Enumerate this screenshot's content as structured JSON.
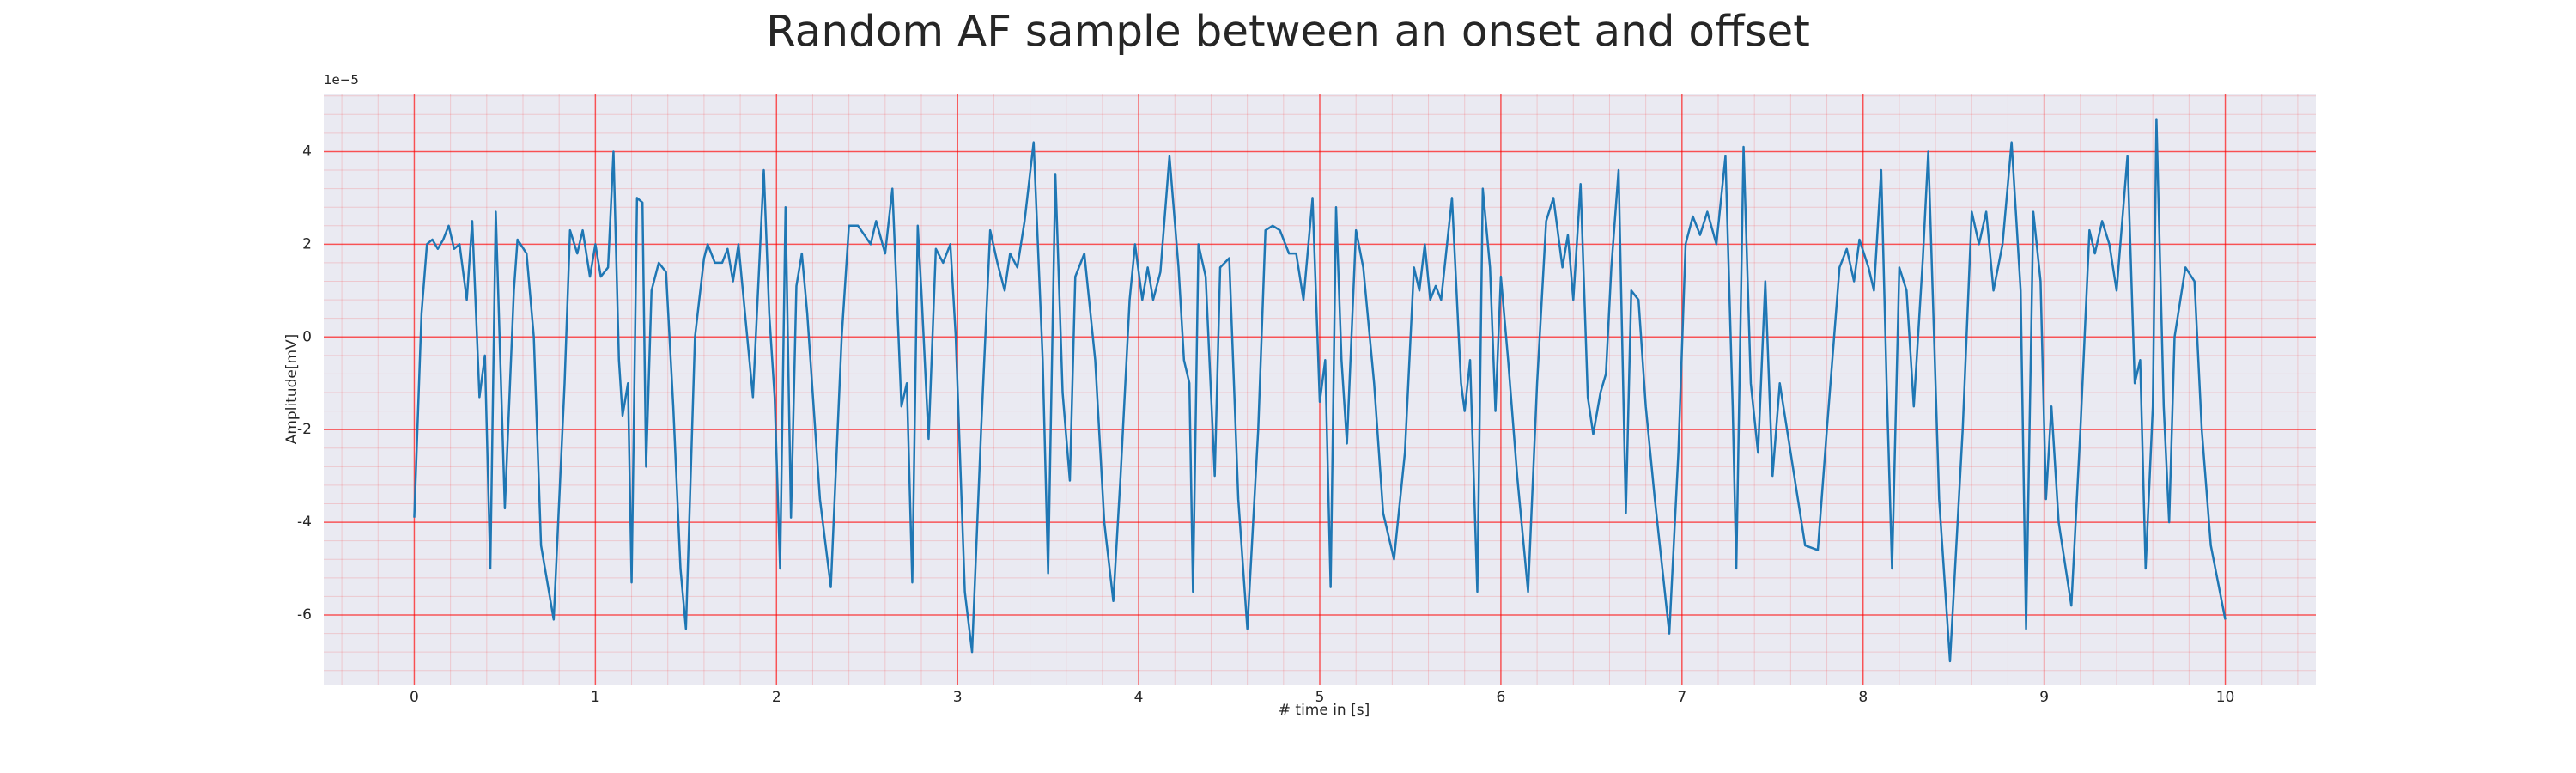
{
  "chart_data": {
    "type": "line",
    "title": "Random AF sample between an onset and offset",
    "xlabel": "# time in [s]",
    "ylabel": "Amplitude[mV]",
    "y_offset_label": "1e−5",
    "xlim": [
      -0.5,
      10.5
    ],
    "ylim": [
      -7.52,
      5.25
    ],
    "xticks": [
      0,
      1,
      2,
      3,
      4,
      5,
      6,
      7,
      8,
      9,
      10
    ],
    "yticks": [
      -6,
      -4,
      -2,
      0,
      2,
      4
    ],
    "grid": true,
    "minor_grid": true,
    "background": "#eaeaf2",
    "grid_color": "#ff0000",
    "x": [
      0,
      0.04,
      0.07,
      0.1,
      0.13,
      0.16,
      0.19,
      0.22,
      0.25,
      0.29,
      0.32,
      0.36,
      0.39,
      0.42,
      0.45,
      0.5,
      0.55,
      0.57,
      0.62,
      0.66,
      0.7,
      0.77,
      0.83,
      0.86,
      0.9,
      0.93,
      0.97,
      1.0,
      1.03,
      1.07,
      1.1,
      1.13,
      1.15,
      1.18,
      1.2,
      1.23,
      1.26,
      1.28,
      1.31,
      1.35,
      1.39,
      1.43,
      1.47,
      1.5,
      1.55,
      1.6,
      1.62,
      1.66,
      1.7,
      1.73,
      1.76,
      1.79,
      1.87,
      1.93,
      1.96,
      1.99,
      2.02,
      2.05,
      2.08,
      2.11,
      2.14,
      2.17,
      2.24,
      2.3,
      2.36,
      2.4,
      2.45,
      2.52,
      2.55,
      2.6,
      2.64,
      2.69,
      2.72,
      2.75,
      2.78,
      2.8,
      2.84,
      2.88,
      2.92,
      2.96,
      2.99,
      3.04,
      3.08,
      3.13,
      3.18,
      3.22,
      3.26,
      3.29,
      3.33,
      3.37,
      3.42,
      3.47,
      3.5,
      3.54,
      3.58,
      3.62,
      3.65,
      3.7,
      3.76,
      3.81,
      3.86,
      3.9,
      3.95,
      3.98,
      4.02,
      4.05,
      4.08,
      4.12,
      4.17,
      4.22,
      4.25,
      4.28,
      4.3,
      4.33,
      4.37,
      4.42,
      4.45,
      4.5,
      4.55,
      4.6,
      4.66,
      4.7,
      4.74,
      4.78,
      4.83,
      4.87,
      4.91,
      4.96,
      5.0,
      5.03,
      5.06,
      5.09,
      5.12,
      5.15,
      5.2,
      5.24,
      5.3,
      5.35,
      5.41,
      5.47,
      5.52,
      5.55,
      5.58,
      5.61,
      5.64,
      5.67,
      5.73,
      5.78,
      5.8,
      5.83,
      5.87,
      5.9,
      5.94,
      5.97,
      6.0,
      6.04,
      6.09,
      6.15,
      6.2,
      6.25,
      6.29,
      6.34,
      6.37,
      6.4,
      6.44,
      6.48,
      6.51,
      6.55,
      6.58,
      6.61,
      6.65,
      6.69,
      6.72,
      6.76,
      6.8,
      6.85,
      6.93,
      6.98,
      7.02,
      7.06,
      7.1,
      7.14,
      7.19,
      7.24,
      7.28,
      7.3,
      7.34,
      7.38,
      7.42,
      7.46,
      7.5,
      7.54,
      7.6,
      7.68,
      7.75,
      7.8,
      7.87,
      7.91,
      7.95,
      7.98,
      8.03,
      8.06,
      8.1,
      8.13,
      8.16,
      8.2,
      8.24,
      8.28,
      8.33,
      8.36,
      8.42,
      8.48,
      8.55,
      8.6,
      8.64,
      8.68,
      8.72,
      8.77,
      8.82,
      8.87,
      8.9,
      8.94,
      8.98,
      9.01,
      9.04,
      9.08,
      9.15,
      9.2,
      9.25,
      9.28,
      9.32,
      9.36,
      9.4,
      9.46,
      9.5,
      9.53,
      9.56,
      9.6,
      9.62,
      9.66,
      9.69,
      9.72,
      9.78,
      9.83,
      9.87,
      9.92,
      10.0
    ],
    "series": [
      {
        "color": "#1f77b4",
        "values": [
          -3.9,
          0.5,
          2.0,
          2.1,
          1.9,
          2.1,
          2.4,
          1.9,
          2.0,
          0.8,
          2.5,
          -1.3,
          -0.4,
          -5.0,
          2.7,
          -3.7,
          1.0,
          2.1,
          1.8,
          0.0,
          -4.5,
          -6.1,
          -1.0,
          2.3,
          1.8,
          2.3,
          1.3,
          2.0,
          1.3,
          1.5,
          4.0,
          -0.5,
          -1.7,
          -1.0,
          -5.3,
          3.0,
          2.9,
          -2.8,
          1.0,
          1.6,
          1.4,
          -1.5,
          -5.0,
          -6.3,
          0.0,
          1.7,
          2.0,
          1.6,
          1.6,
          1.9,
          1.2,
          2.0,
          -1.3,
          3.6,
          0.5,
          -1.3,
          -5.0,
          2.8,
          -3.9,
          1.1,
          1.8,
          0.5,
          -3.5,
          -5.4,
          0.0,
          2.4,
          2.4,
          2.0,
          2.5,
          1.8,
          3.2,
          -1.5,
          -1.0,
          -5.3,
          2.4,
          1.0,
          -2.2,
          1.9,
          1.6,
          2.0,
          0.0,
          -5.5,
          -6.8,
          -2.0,
          2.3,
          1.6,
          1.0,
          1.8,
          1.5,
          2.5,
          4.2,
          -0.5,
          -5.1,
          3.5,
          -1.2,
          -3.1,
          1.3,
          1.8,
          -0.5,
          -4.0,
          -5.7,
          -3.0,
          0.8,
          2.0,
          0.8,
          1.5,
          0.8,
          1.4,
          3.9,
          1.5,
          -0.5,
          -1.0,
          -5.5,
          2.0,
          1.3,
          -3.0,
          1.5,
          1.7,
          -3.5,
          -6.3,
          -2.0,
          2.3,
          2.4,
          2.3,
          1.8,
          1.8,
          0.8,
          3.0,
          -1.4,
          -0.5,
          -5.4,
          2.8,
          -0.5,
          -2.3,
          2.3,
          1.5,
          -1.0,
          -3.8,
          -4.8,
          -2.5,
          1.5,
          1.0,
          2.0,
          0.8,
          1.1,
          0.8,
          3.0,
          -1.0,
          -1.6,
          -0.5,
          -5.5,
          3.2,
          1.5,
          -1.6,
          1.3,
          -0.5,
          -3.0,
          -5.5,
          -1.0,
          2.5,
          3.0,
          1.5,
          2.2,
          0.8,
          3.3,
          -1.3,
          -2.1,
          -1.2,
          -0.8,
          1.5,
          3.6,
          -3.8,
          1.0,
          0.8,
          -1.5,
          -3.5,
          -6.4,
          -2.5,
          2.0,
          2.6,
          2.2,
          2.7,
          2.0,
          3.9,
          -1.5,
          -5.0,
          4.1,
          -1.0,
          -2.5,
          1.2,
          -3.0,
          -1.0,
          -2.5,
          -4.5,
          -4.6,
          -2.0,
          1.5,
          1.9,
          1.2,
          2.1,
          1.5,
          1.0,
          3.6,
          -1.0,
          -5.0,
          1.5,
          1.0,
          -1.5,
          1.7,
          4.0,
          -3.5,
          -7.0,
          -2.0,
          2.7,
          2.0,
          2.7,
          1.0,
          2.0,
          4.2,
          1.0,
          -6.3,
          2.7,
          1.2,
          -3.5,
          -1.5,
          -4.0,
          -5.8,
          -2.0,
          2.3,
          1.8,
          2.5,
          2.0,
          1.0,
          3.9,
          -1.0,
          -0.5,
          -5.0,
          -1.5,
          4.7,
          -1.5,
          -4.0,
          0.0,
          1.5,
          1.2,
          -2.0,
          -4.5,
          -6.1
        ]
      }
    ]
  }
}
